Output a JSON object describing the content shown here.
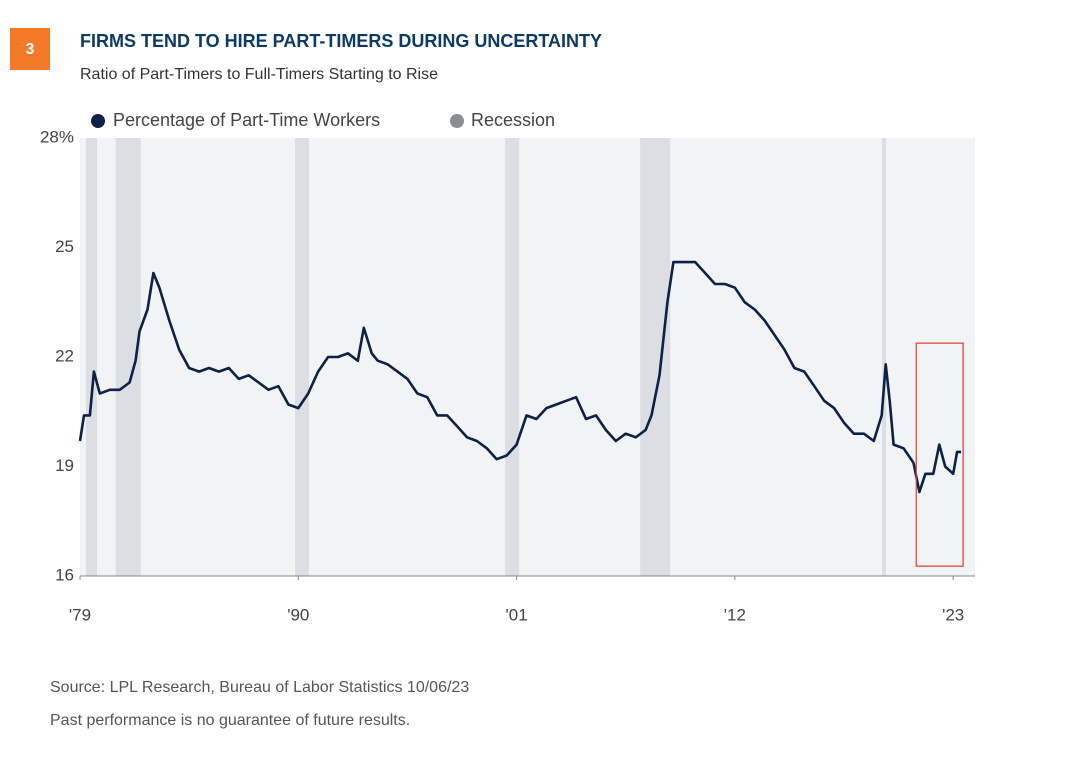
{
  "badge": "3",
  "chart_data": {
    "type": "line",
    "title": "FIRMS TEND TO HIRE PART-TIMERS DURING UNCERTAINTY",
    "subtitle": "Ratio of Part-Timers to Full-Timers Starting to Rise",
    "source": "Source: LPL Research, Bureau of Labor Statistics  10/06/23",
    "disclaimer": "Past performance is no guarantee of future results.",
    "x": [
      1979.0,
      1979.2,
      1979.5,
      1979.7,
      1980.0,
      1980.5,
      1981.0,
      1981.5,
      1981.8,
      1982.0,
      1982.4,
      1982.7,
      1983.0,
      1983.5,
      1984.0,
      1984.5,
      1985.0,
      1985.5,
      1986.0,
      1986.5,
      1987.0,
      1987.5,
      1988.0,
      1988.5,
      1989.0,
      1989.5,
      1990.0,
      1990.5,
      1991.0,
      1991.5,
      1992.0,
      1992.5,
      1993.0,
      1993.3,
      1993.7,
      1994.0,
      1994.5,
      1995.0,
      1995.5,
      1996.0,
      1996.5,
      1997.0,
      1997.5,
      1998.0,
      1998.5,
      1999.0,
      1999.5,
      2000.0,
      2000.5,
      2001.0,
      2001.5,
      2002.0,
      2002.5,
      2003.0,
      2003.5,
      2004.0,
      2004.5,
      2005.0,
      2005.5,
      2006.0,
      2006.5,
      2007.0,
      2007.5,
      2007.8,
      2008.2,
      2008.6,
      2008.9,
      2009.5,
      2010.0,
      2010.5,
      2011.0,
      2011.5,
      2012.0,
      2012.5,
      2013.0,
      2013.5,
      2014.0,
      2014.5,
      2015.0,
      2015.5,
      2016.0,
      2016.5,
      2017.0,
      2017.5,
      2018.0,
      2018.5,
      2019.0,
      2019.4,
      2019.6,
      2019.8,
      2020.0,
      2020.5,
      2021.0,
      2021.3,
      2021.6,
      2022.0,
      2022.3,
      2022.6,
      2023.0,
      2023.2,
      2023.4
    ],
    "series": [
      {
        "name": "Percentage of Part-Time Workers",
        "color": "#0b2145",
        "values": [
          19.7,
          20.4,
          20.4,
          21.6,
          21.0,
          21.1,
          21.1,
          21.3,
          21.9,
          22.7,
          23.3,
          24.3,
          23.9,
          23.0,
          22.2,
          21.7,
          21.6,
          21.7,
          21.6,
          21.7,
          21.4,
          21.5,
          21.3,
          21.1,
          21.2,
          20.7,
          20.6,
          21.0,
          21.6,
          22.0,
          22.0,
          22.1,
          21.9,
          22.8,
          22.1,
          21.9,
          21.8,
          21.6,
          21.4,
          21.0,
          20.9,
          20.4,
          20.4,
          20.1,
          19.8,
          19.7,
          19.5,
          19.2,
          19.3,
          19.6,
          20.4,
          20.3,
          20.6,
          20.7,
          20.8,
          20.9,
          20.3,
          20.4,
          20.0,
          19.7,
          19.9,
          19.8,
          20.0,
          20.4,
          21.5,
          23.5,
          24.6,
          24.6,
          24.6,
          24.3,
          24.0,
          24.0,
          23.9,
          23.5,
          23.3,
          23.0,
          22.6,
          22.2,
          21.7,
          21.6,
          21.2,
          20.8,
          20.6,
          20.2,
          19.9,
          19.9,
          19.7,
          20.4,
          21.8,
          20.8,
          19.6,
          19.5,
          19.1,
          18.3,
          18.8,
          18.8,
          19.6,
          19.0,
          18.8,
          19.4,
          19.4
        ]
      }
    ],
    "recession": {
      "name": "Recession",
      "color": "#8a8d91",
      "band_color": "#dcdee3",
      "periods": [
        [
          1979.3,
          1979.86
        ],
        [
          1980.8,
          1982.06
        ],
        [
          1989.84,
          1990.54
        ],
        [
          2000.42,
          2001.13
        ],
        [
          2007.23,
          2008.74
        ],
        [
          2019.42,
          2019.62
        ]
      ]
    },
    "highlight": {
      "x": [
        2021.14,
        2023.5
      ],
      "y": [
        16.27,
        22.38
      ],
      "color": "#e03c31"
    },
    "xlim": [
      1979,
      2024.1
    ],
    "xticks": [
      {
        "value": 1979,
        "label": "'79"
      },
      {
        "value": 1990,
        "label": "'90"
      },
      {
        "value": 2001,
        "label": "'01"
      },
      {
        "value": 2012,
        "label": "'12"
      },
      {
        "value": 2023,
        "label": "'23"
      }
    ],
    "ylim": [
      16,
      28
    ],
    "yticks": [
      16,
      19,
      22,
      25,
      {
        "value": 28,
        "label": "28%"
      }
    ],
    "grid": false
  }
}
